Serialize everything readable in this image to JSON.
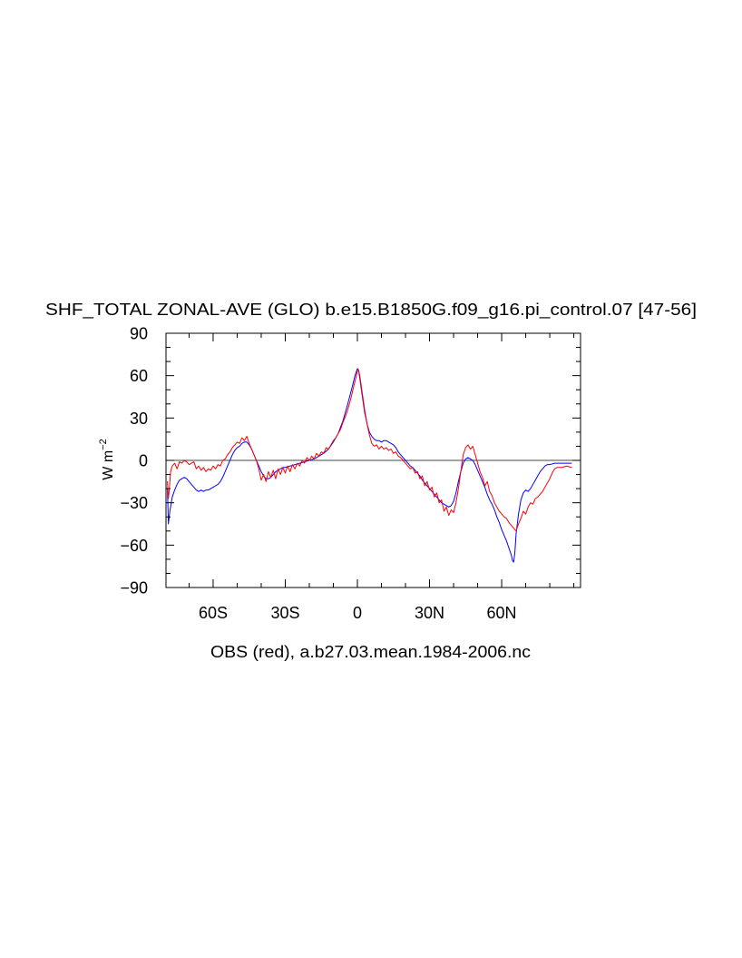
{
  "chart_data": {
    "type": "line",
    "title": "SHF_TOTAL ZONAL-AVE (GLO) b.e15.B1850G.f09_g16.pi_control.07 [47-56]",
    "subtitle": "OBS (red), a.b27.03.mean.1984-2006.nc",
    "xlabel": "",
    "ylabel": "W m",
    "ylabel_superscript": "−2",
    "xlim": [
      -79.6,
      92.8
    ],
    "ylim": [
      -90,
      90
    ],
    "grid": false,
    "reference_line": 0,
    "minor_tick_step": 10,
    "x_ticks": [
      {
        "value": -60,
        "label": "60S"
      },
      {
        "value": -30,
        "label": "30S"
      },
      {
        "value": 0,
        "label": "0"
      },
      {
        "value": 30,
        "label": "30N"
      },
      {
        "value": 60,
        "label": "60N"
      }
    ],
    "y_ticks": [
      {
        "value": 90,
        "label": "90"
      },
      {
        "value": 60,
        "label": "60"
      },
      {
        "value": 30,
        "label": "30"
      },
      {
        "value": 0,
        "label": "0"
      },
      {
        "value": -30,
        "label": "−30"
      },
      {
        "value": -60,
        "label": "−60"
      },
      {
        "value": -90,
        "label": "−90"
      }
    ],
    "series": [
      {
        "color": "#0000ff",
        "data": [
          [
            -79,
            -20
          ],
          [
            -78.6,
            -45
          ],
          [
            -78,
            -36
          ],
          [
            -77,
            -26
          ],
          [
            -76,
            -21
          ],
          [
            -75,
            -17
          ],
          [
            -74,
            -14
          ],
          [
            -73,
            -13
          ],
          [
            -72,
            -12
          ],
          [
            -71,
            -13
          ],
          [
            -70,
            -15
          ],
          [
            -69,
            -17
          ],
          [
            -68,
            -19
          ],
          [
            -67,
            -21
          ],
          [
            -66,
            -22
          ],
          [
            -65,
            -21
          ],
          [
            -64,
            -22
          ],
          [
            -63,
            -21
          ],
          [
            -62,
            -21
          ],
          [
            -61,
            -20
          ],
          [
            -60,
            -19
          ],
          [
            -59,
            -18
          ],
          [
            -58,
            -17
          ],
          [
            -57,
            -15
          ],
          [
            -56,
            -12
          ],
          [
            -55,
            -8
          ],
          [
            -54,
            -4
          ],
          [
            -53,
            0
          ],
          [
            -52,
            4
          ],
          [
            -51,
            7
          ],
          [
            -50,
            9
          ],
          [
            -49,
            10
          ],
          [
            -48,
            12
          ],
          [
            -47,
            13
          ],
          [
            -46,
            13
          ],
          [
            -45,
            11
          ],
          [
            -44,
            8
          ],
          [
            -43,
            4
          ],
          [
            -42,
            0
          ],
          [
            -41,
            -4
          ],
          [
            -40,
            -8
          ],
          [
            -39,
            -11
          ],
          [
            -38,
            -13
          ],
          [
            -37,
            -13
          ],
          [
            -36,
            -12
          ],
          [
            -35,
            -10
          ],
          [
            -34,
            -8
          ],
          [
            -33,
            -7
          ],
          [
            -32,
            -6
          ],
          [
            -31,
            -5
          ],
          [
            -30,
            -5
          ],
          [
            -28,
            -4
          ],
          [
            -26,
            -3
          ],
          [
            -24,
            -2
          ],
          [
            -22,
            -1
          ],
          [
            -20,
            0
          ],
          [
            -18,
            1
          ],
          [
            -16,
            3
          ],
          [
            -14,
            5
          ],
          [
            -12,
            8
          ],
          [
            -10,
            13
          ],
          [
            -8,
            19
          ],
          [
            -6,
            28
          ],
          [
            -4,
            40
          ],
          [
            -2,
            53
          ],
          [
            -1,
            60
          ],
          [
            0,
            65
          ],
          [
            0.5,
            64
          ],
          [
            1,
            58
          ],
          [
            2,
            46
          ],
          [
            3,
            34
          ],
          [
            4,
            26
          ],
          [
            5,
            20
          ],
          [
            6,
            17
          ],
          [
            7,
            15
          ],
          [
            8,
            14
          ],
          [
            9,
            14
          ],
          [
            10,
            13
          ],
          [
            11,
            14
          ],
          [
            12,
            14
          ],
          [
            13,
            13
          ],
          [
            14,
            12
          ],
          [
            15,
            11
          ],
          [
            16,
            9
          ],
          [
            17,
            6
          ],
          [
            18,
            4
          ],
          [
            19,
            2
          ],
          [
            20,
            0
          ],
          [
            21,
            -2
          ],
          [
            22,
            -4
          ],
          [
            23,
            -5
          ],
          [
            24,
            -7
          ],
          [
            25,
            -9
          ],
          [
            26,
            -11
          ],
          [
            27,
            -14
          ],
          [
            28,
            -16
          ],
          [
            29,
            -18
          ],
          [
            30,
            -20
          ],
          [
            31,
            -22
          ],
          [
            32,
            -24
          ],
          [
            33,
            -26
          ],
          [
            34,
            -28
          ],
          [
            35,
            -30
          ],
          [
            36,
            -31
          ],
          [
            37,
            -32
          ],
          [
            38,
            -33
          ],
          [
            39,
            -32
          ],
          [
            40,
            -29
          ],
          [
            41,
            -23
          ],
          [
            42,
            -15
          ],
          [
            43,
            -8
          ],
          [
            44,
            -2
          ],
          [
            45,
            1
          ],
          [
            46,
            2
          ],
          [
            47,
            1
          ],
          [
            48,
            0
          ],
          [
            49,
            -3
          ],
          [
            50,
            -7
          ],
          [
            51,
            -11
          ],
          [
            52,
            -15
          ],
          [
            53,
            -19
          ],
          [
            54,
            -24
          ],
          [
            55,
            -28
          ],
          [
            56,
            -31
          ],
          [
            57,
            -35
          ],
          [
            58,
            -40
          ],
          [
            59,
            -44
          ],
          [
            60,
            -49
          ],
          [
            61,
            -53
          ],
          [
            62,
            -57
          ],
          [
            63,
            -62
          ],
          [
            64,
            -67
          ],
          [
            64.5,
            -71
          ],
          [
            65,
            -72
          ],
          [
            65.5,
            -65
          ],
          [
            66,
            -52
          ],
          [
            67,
            -38
          ],
          [
            68,
            -28
          ],
          [
            69,
            -23
          ],
          [
            70,
            -21
          ],
          [
            71,
            -22
          ],
          [
            72,
            -20
          ],
          [
            73,
            -17
          ],
          [
            74,
            -14
          ],
          [
            75,
            -11
          ],
          [
            76,
            -8
          ],
          [
            77,
            -6
          ],
          [
            78,
            -4
          ],
          [
            79,
            -3
          ],
          [
            80,
            -3
          ],
          [
            82,
            -2
          ],
          [
            85,
            -2
          ],
          [
            89,
            -2
          ]
        ]
      },
      {
        "color": "#ff0000",
        "data": [
          [
            -79,
            -15
          ],
          [
            -78.6,
            -27
          ],
          [
            -78.2,
            -20
          ],
          [
            -77.7,
            -8
          ],
          [
            -77,
            -4
          ],
          [
            -76,
            -2
          ],
          [
            -75,
            -6
          ],
          [
            -74,
            -1
          ],
          [
            -73,
            -2
          ],
          [
            -72,
            0
          ],
          [
            -71,
            -1
          ],
          [
            -70,
            -3
          ],
          [
            -69,
            -2
          ],
          [
            -68,
            -1
          ],
          [
            -67,
            -6
          ],
          [
            -66,
            -4
          ],
          [
            -65,
            -7
          ],
          [
            -64,
            -5
          ],
          [
            -63,
            -8
          ],
          [
            -62,
            -6
          ],
          [
            -61,
            -7
          ],
          [
            -60,
            -4
          ],
          [
            -59,
            -6
          ],
          [
            -58,
            -3
          ],
          [
            -57,
            -4
          ],
          [
            -56,
            0
          ],
          [
            -55,
            1
          ],
          [
            -54,
            4
          ],
          [
            -53,
            6
          ],
          [
            -52,
            9
          ],
          [
            -51,
            11
          ],
          [
            -50,
            13
          ],
          [
            -49,
            12
          ],
          [
            -48,
            16
          ],
          [
            -47,
            14
          ],
          [
            -46,
            17
          ],
          [
            -45,
            12
          ],
          [
            -44,
            8
          ],
          [
            -43,
            4
          ],
          [
            -42,
            0
          ],
          [
            -41,
            -6
          ],
          [
            -40,
            -14
          ],
          [
            -39,
            -10
          ],
          [
            -38,
            -15
          ],
          [
            -37,
            -8
          ],
          [
            -36,
            -12
          ],
          [
            -35,
            -7
          ],
          [
            -34,
            -13
          ],
          [
            -33,
            -6
          ],
          [
            -32,
            -10
          ],
          [
            -31,
            -5
          ],
          [
            -30,
            -9
          ],
          [
            -29,
            -4
          ],
          [
            -28,
            -8
          ],
          [
            -27,
            -3
          ],
          [
            -26,
            -6
          ],
          [
            -25,
            -2
          ],
          [
            -24,
            -4
          ],
          [
            -23,
            0
          ],
          [
            -22,
            -2
          ],
          [
            -21,
            2
          ],
          [
            -20,
            0
          ],
          [
            -19,
            3
          ],
          [
            -18,
            1
          ],
          [
            -17,
            5
          ],
          [
            -16,
            3
          ],
          [
            -15,
            6
          ],
          [
            -14,
            5
          ],
          [
            -13,
            9
          ],
          [
            -12,
            8
          ],
          [
            -11,
            11
          ],
          [
            -10,
            14
          ],
          [
            -9,
            16
          ],
          [
            -8,
            19
          ],
          [
            -7,
            22
          ],
          [
            -6,
            27
          ],
          [
            -5,
            31
          ],
          [
            -4,
            36
          ],
          [
            -3,
            42
          ],
          [
            -2,
            49
          ],
          [
            -1,
            56
          ],
          [
            0,
            63
          ],
          [
            0.5,
            64
          ],
          [
            1,
            60
          ],
          [
            2,
            48
          ],
          [
            3,
            36
          ],
          [
            4,
            26
          ],
          [
            5,
            18
          ],
          [
            6,
            12
          ],
          [
            7,
            10
          ],
          [
            8,
            11
          ],
          [
            9,
            8
          ],
          [
            10,
            10
          ],
          [
            11,
            8
          ],
          [
            12,
            9
          ],
          [
            13,
            7
          ],
          [
            14,
            8
          ],
          [
            15,
            5
          ],
          [
            16,
            6
          ],
          [
            17,
            3
          ],
          [
            18,
            2
          ],
          [
            19,
            0
          ],
          [
            20,
            -2
          ],
          [
            21,
            -4
          ],
          [
            22,
            -6
          ],
          [
            23,
            -5
          ],
          [
            24,
            -9
          ],
          [
            25,
            -8
          ],
          [
            26,
            -13
          ],
          [
            27,
            -11
          ],
          [
            28,
            -18
          ],
          [
            29,
            -15
          ],
          [
            30,
            -21
          ],
          [
            31,
            -19
          ],
          [
            32,
            -26
          ],
          [
            33,
            -23
          ],
          [
            34,
            -30
          ],
          [
            35,
            -28
          ],
          [
            36,
            -36
          ],
          [
            37,
            -33
          ],
          [
            38,
            -39
          ],
          [
            39,
            -35
          ],
          [
            40,
            -37
          ],
          [
            41,
            -30
          ],
          [
            42,
            -20
          ],
          [
            43,
            -8
          ],
          [
            44,
            4
          ],
          [
            45,
            9
          ],
          [
            46,
            11
          ],
          [
            47,
            8
          ],
          [
            48,
            10
          ],
          [
            49,
            4
          ],
          [
            50,
            -2
          ],
          [
            51,
            -8
          ],
          [
            52,
            -12
          ],
          [
            53,
            -18
          ],
          [
            54,
            -15
          ],
          [
            55,
            -22
          ],
          [
            56,
            -25
          ],
          [
            57,
            -30
          ],
          [
            58,
            -33
          ],
          [
            59,
            -36
          ],
          [
            60,
            -38
          ],
          [
            61,
            -40
          ],
          [
            62,
            -41
          ],
          [
            63,
            -44
          ],
          [
            64,
            -46
          ],
          [
            65,
            -48
          ],
          [
            66,
            -50
          ],
          [
            67,
            -45
          ],
          [
            68,
            -41
          ],
          [
            69,
            -36
          ],
          [
            70,
            -38
          ],
          [
            71,
            -33
          ],
          [
            72,
            -30
          ],
          [
            73,
            -31
          ],
          [
            74,
            -27
          ],
          [
            75,
            -26
          ],
          [
            76,
            -24
          ],
          [
            77,
            -22
          ],
          [
            78,
            -19
          ],
          [
            79,
            -16
          ],
          [
            80,
            -13
          ],
          [
            81,
            -9
          ],
          [
            82,
            -6
          ],
          [
            83,
            -5
          ],
          [
            85,
            -5
          ],
          [
            87,
            -4
          ],
          [
            89,
            -5
          ]
        ]
      }
    ]
  }
}
